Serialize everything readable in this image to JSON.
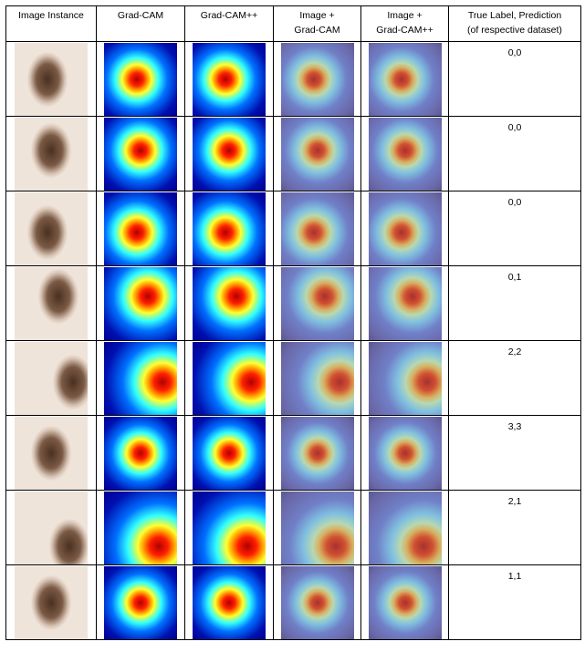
{
  "table": {
    "header": [
      "Image Instance",
      "Grad-CAM",
      "Grad-CAM++",
      "Image +\nGrad-CAM",
      "Image +\nGrad-CAM++",
      "True Label, Prediction\n(of respective dataset)"
    ],
    "labels": [
      "0,0",
      "0,0",
      "0,0",
      "0,1",
      "2,2",
      "3,3",
      "2,1",
      "1,1"
    ]
  }
}
